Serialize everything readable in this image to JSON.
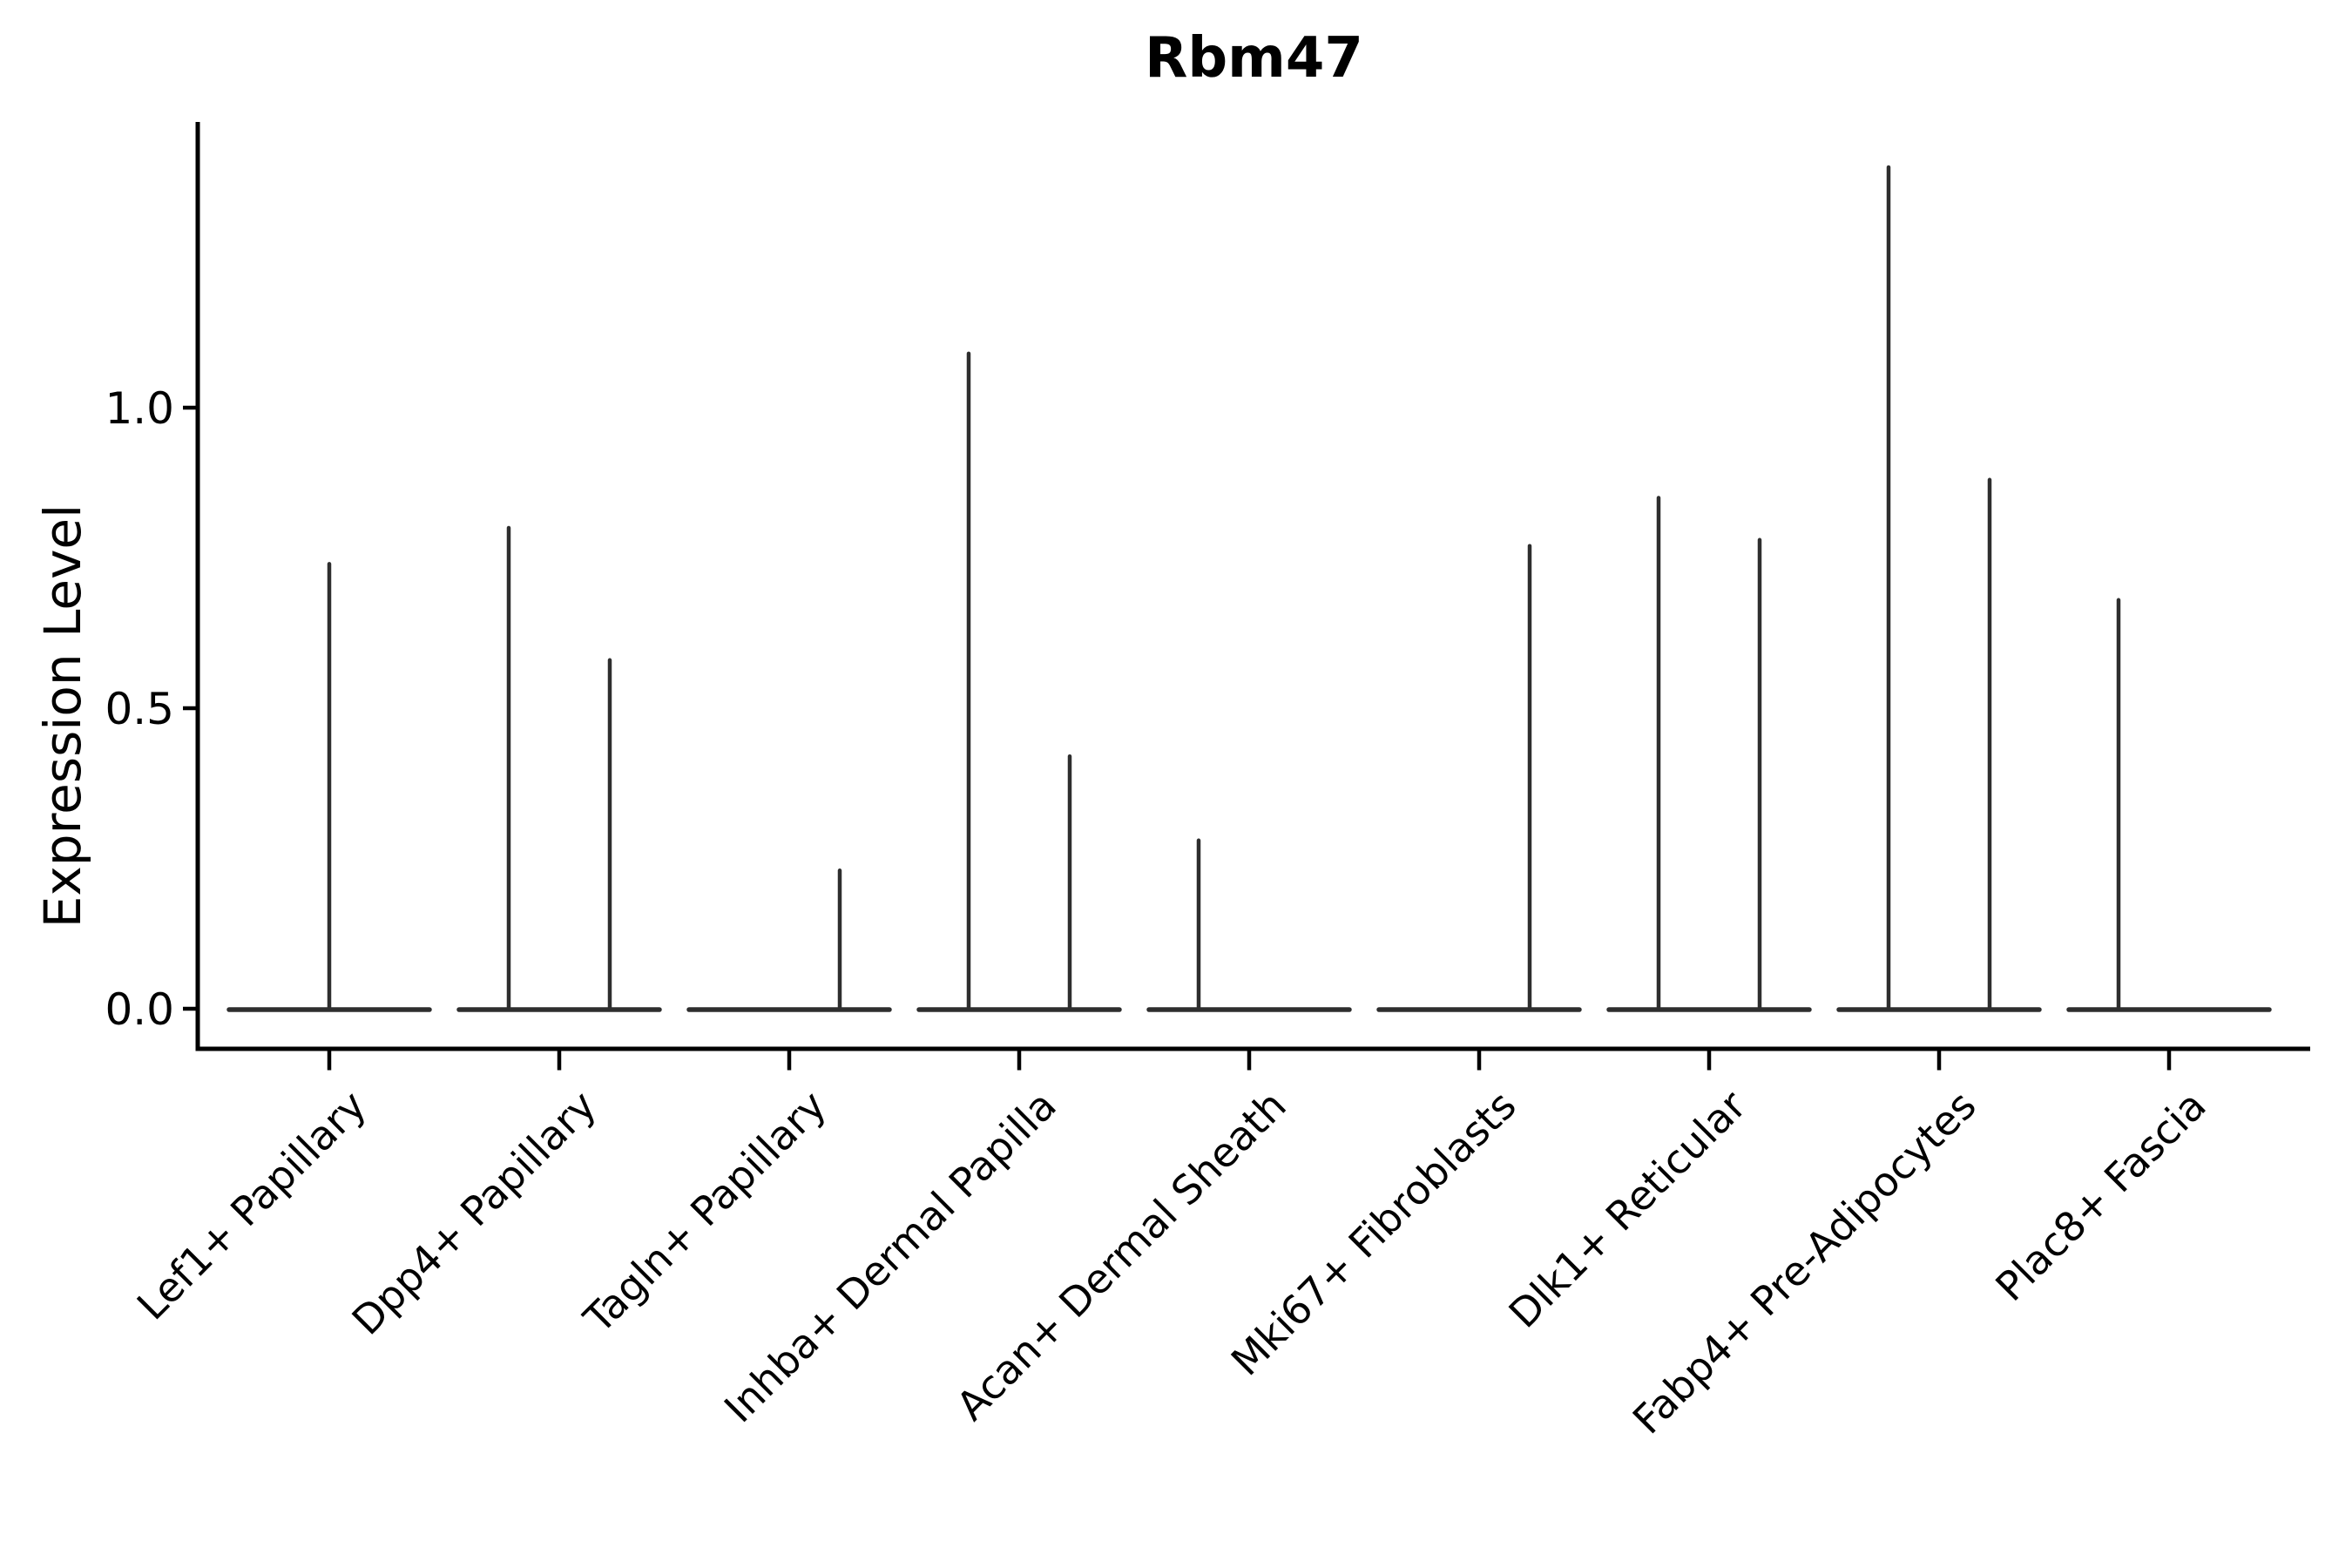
{
  "title": "Rbm47",
  "y_axis": {
    "label": "Expression Level",
    "tick_labels": [
      "0.0",
      "0.5",
      "1.0"
    ]
  },
  "x_axis": {
    "label": "",
    "tick_labels": [
      "Lef1+ Papillary",
      "Dpp4+ Papillary",
      "Tagln+ Papillary",
      "Inhba+ Dermal Papilla",
      "Acan+ Dermal Sheath",
      "Mki67+ Fibroblasts",
      "Dlk1+ Reticular",
      "Fabp4+ Pre-Adipocytes",
      "Plac8+ Fascia"
    ]
  },
  "chart_data": {
    "type": "violin",
    "title": "Rbm47",
    "xlabel": "",
    "ylabel": "Expression Level",
    "ylim": [
      -0.07,
      1.48
    ],
    "yticks": [
      0.0,
      0.5,
      1.0
    ],
    "grid": false,
    "legend": false,
    "categories": [
      "Lef1+ Papillary",
      "Dpp4+ Papillary",
      "Tagln+ Papillary",
      "Inhba+ Dermal Papilla",
      "Acan+ Dermal Sheath",
      "Mki67+ Fibroblasts",
      "Dlk1+ Reticular",
      "Fabp4+ Pre-Adipocytes",
      "Plac8+ Fascia"
    ],
    "violins": [
      {
        "category": "Lef1+ Papillary",
        "spikes": [
          {
            "pos": "center",
            "max_expression": 0.74
          }
        ]
      },
      {
        "category": "Dpp4+ Papillary",
        "spikes": [
          {
            "pos": "left",
            "max_expression": 0.8
          },
          {
            "pos": "right",
            "max_expression": 0.58
          }
        ]
      },
      {
        "category": "Tagln+ Papillary",
        "spikes": [
          {
            "pos": "right",
            "max_expression": 0.23
          }
        ]
      },
      {
        "category": "Inhba+ Dermal Papilla",
        "spikes": [
          {
            "pos": "left",
            "max_expression": 1.09
          },
          {
            "pos": "right",
            "max_expression": 0.42
          }
        ]
      },
      {
        "category": "Acan+ Dermal Sheath",
        "spikes": [
          {
            "pos": "left",
            "max_expression": 0.28
          }
        ]
      },
      {
        "category": "Mki67+ Fibroblasts",
        "spikes": [
          {
            "pos": "right",
            "max_expression": 0.77
          }
        ]
      },
      {
        "category": "Dlk1+ Reticular",
        "spikes": [
          {
            "pos": "left",
            "max_expression": 0.85
          },
          {
            "pos": "right",
            "max_expression": 0.78
          }
        ]
      },
      {
        "category": "Fabp4+ Pre-Adipocytes",
        "spikes": [
          {
            "pos": "left",
            "max_expression": 1.4
          },
          {
            "pos": "right",
            "max_expression": 0.88
          }
        ]
      },
      {
        "category": "Plac8+ Fascia",
        "spikes": [
          {
            "pos": "left",
            "max_expression": 0.68
          }
        ]
      }
    ],
    "colors": {
      "violin_stroke": "#2e2e2e",
      "axis": "#000000",
      "text": "#000000",
      "background": "#ffffff"
    }
  }
}
